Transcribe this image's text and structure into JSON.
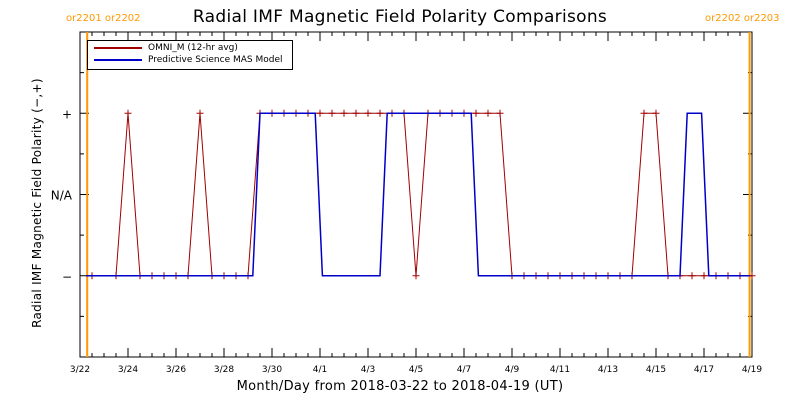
{
  "chart_data": {
    "type": "line",
    "title": "Radial IMF Magnetic Field Polarity Comparisons",
    "xlabel": "Month/Day from 2018-03-22 to 2018-04-19 (UT)",
    "ylabel": "Radial IMF Magnetic Field Polarity (−,+)",
    "x_start": "2018-03-22",
    "xlim_days": [
      0,
      28
    ],
    "x_ticks": [
      {
        "day": 0,
        "label": "3/22"
      },
      {
        "day": 2,
        "label": "3/24"
      },
      {
        "day": 4,
        "label": "3/26"
      },
      {
        "day": 6,
        "label": "3/28"
      },
      {
        "day": 8,
        "label": "3/30"
      },
      {
        "day": 10,
        "label": "4/1"
      },
      {
        "day": 12,
        "label": "4/3"
      },
      {
        "day": 14,
        "label": "4/5"
      },
      {
        "day": 16,
        "label": "4/7"
      },
      {
        "day": 18,
        "label": "4/9"
      },
      {
        "day": 20,
        "label": "4/11"
      },
      {
        "day": 22,
        "label": "4/13"
      },
      {
        "day": 24,
        "label": "4/15"
      },
      {
        "day": 26,
        "label": "4/17"
      },
      {
        "day": 28,
        "label": "4/19"
      }
    ],
    "ylim": [
      -2,
      2
    ],
    "y_ticks": [
      {
        "value": 1,
        "label": "+"
      },
      {
        "value": 0,
        "label": "N/A"
      },
      {
        "value": -1,
        "label": "−"
      }
    ],
    "carrington_markers": [
      {
        "day": 0.3,
        "label": "or2201 or2202"
      },
      {
        "day": 27.9,
        "label": "or2202 or2203"
      }
    ],
    "legend_position": "top-left",
    "series": [
      {
        "name": "OMNI_M (12-hr avg)",
        "color": "#a00000",
        "markers": true,
        "points": [
          [
            0.5,
            -1
          ],
          [
            1.5,
            -1
          ],
          [
            2.0,
            1
          ],
          [
            2.5,
            -1
          ],
          [
            3.0,
            -1
          ],
          [
            3.5,
            -1
          ],
          [
            4.0,
            -1
          ],
          [
            4.5,
            -1
          ],
          [
            5.0,
            1
          ],
          [
            5.5,
            -1
          ],
          [
            6.0,
            -1
          ],
          [
            6.5,
            -1
          ],
          [
            7.0,
            -1
          ],
          [
            7.5,
            1
          ],
          [
            8.0,
            1
          ],
          [
            8.5,
            1
          ],
          [
            9.0,
            1
          ],
          [
            9.5,
            1
          ],
          [
            10.0,
            1
          ],
          [
            10.5,
            1
          ],
          [
            11.0,
            1
          ],
          [
            11.5,
            1
          ],
          [
            12.0,
            1
          ],
          [
            12.5,
            1
          ],
          [
            13.0,
            1
          ],
          [
            13.5,
            1
          ],
          [
            14.0,
            -1
          ],
          [
            14.5,
            1
          ],
          [
            15.0,
            1
          ],
          [
            15.5,
            1
          ],
          [
            16.0,
            1
          ],
          [
            16.5,
            1
          ],
          [
            17.0,
            1
          ],
          [
            17.5,
            1
          ],
          [
            18.0,
            -1
          ],
          [
            18.5,
            -1
          ],
          [
            19.0,
            -1
          ],
          [
            19.5,
            -1
          ],
          [
            20.0,
            -1
          ],
          [
            20.5,
            -1
          ],
          [
            21.0,
            -1
          ],
          [
            21.5,
            -1
          ],
          [
            22.0,
            -1
          ],
          [
            22.5,
            -1
          ],
          [
            23.0,
            -1
          ],
          [
            23.5,
            1
          ],
          [
            24.0,
            1
          ],
          [
            24.5,
            -1
          ],
          [
            25.0,
            -1
          ],
          [
            25.5,
            -1
          ],
          [
            26.0,
            -1
          ],
          [
            26.5,
            -1
          ],
          [
            27.0,
            -1
          ],
          [
            27.5,
            -1
          ],
          [
            28.0,
            -1
          ]
        ]
      },
      {
        "name": "Predictive Science MAS Model",
        "color": "#0000c8",
        "markers": false,
        "points": [
          [
            0.25,
            -1
          ],
          [
            7.2,
            -1
          ],
          [
            7.5,
            1
          ],
          [
            9.8,
            1
          ],
          [
            10.1,
            -1
          ],
          [
            12.5,
            -1
          ],
          [
            12.8,
            1
          ],
          [
            16.3,
            1
          ],
          [
            16.6,
            -1
          ],
          [
            25.0,
            -1
          ],
          [
            25.3,
            1
          ],
          [
            25.9,
            1
          ],
          [
            26.2,
            -1
          ],
          [
            27.9,
            -1
          ]
        ]
      }
    ]
  }
}
